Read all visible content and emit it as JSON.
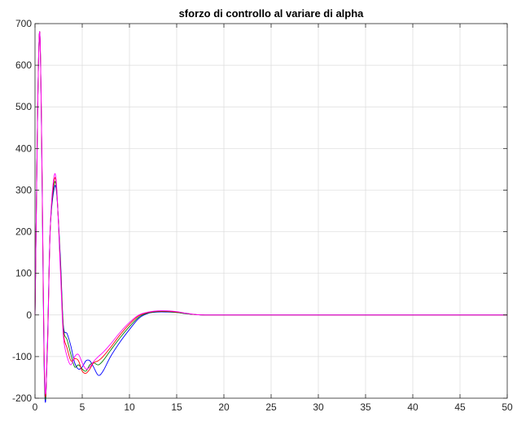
{
  "chart_data": {
    "type": "line",
    "title": "sforzo di controllo al variare di alpha",
    "xlabel": "",
    "ylabel": "",
    "xlim": [
      0,
      50
    ],
    "ylim": [
      -200,
      700
    ],
    "xticks": [
      "0",
      "5",
      "10",
      "15",
      "20",
      "25",
      "30",
      "35",
      "40",
      "45",
      "50"
    ],
    "yticks": [
      "-200",
      "-100",
      "0",
      "100",
      "200",
      "300",
      "400",
      "500",
      "600",
      "700"
    ],
    "grid": true,
    "legend": "none",
    "colors": {
      "axis": "#262626",
      "grid": "#dcdcdc",
      "background": "#ffffff"
    },
    "series": [
      {
        "color": "#0000ff",
        "x": [
          0,
          0.5,
          1.0,
          1.3,
          1.6,
          2.0,
          2.3,
          2.7,
          3.0,
          3.4,
          3.8,
          4.2,
          4.6,
          5.0,
          5.4,
          5.8,
          6.2,
          6.7,
          7.2,
          8.0,
          9.0,
          10.0,
          11.0,
          12.0,
          13.0,
          14.0,
          15.0,
          16.0,
          17.0,
          18.0,
          19.0,
          20.0,
          22.0,
          25.0,
          30.0,
          40.0,
          50.0
        ],
        "y": [
          0,
          680,
          -160,
          -80,
          200,
          300,
          290,
          130,
          -25,
          -45,
          -75,
          -115,
          -130,
          -125,
          -110,
          -110,
          -125,
          -145,
          -135,
          -100,
          -65,
          -35,
          -8,
          4,
          7,
          7,
          6,
          3,
          1,
          0,
          0,
          0,
          0,
          0,
          0,
          0,
          0
        ]
      },
      {
        "color": "#008000",
        "x": [
          0,
          0.5,
          1.0,
          1.3,
          1.6,
          2.0,
          2.3,
          2.7,
          3.0,
          3.4,
          3.8,
          4.2,
          4.6,
          5.0,
          5.4,
          5.8,
          6.2,
          6.7,
          7.2,
          8.0,
          9.0,
          10.0,
          11.0,
          12.0,
          13.0,
          14.0,
          15.0,
          16.0,
          17.0,
          18.0,
          19.0,
          20.0,
          22.0,
          25.0,
          30.0,
          40.0,
          50.0
        ],
        "y": [
          0,
          680,
          -150,
          -85,
          200,
          310,
          295,
          120,
          -30,
          -60,
          -95,
          -125,
          -120,
          -130,
          -135,
          -120,
          -115,
          -120,
          -110,
          -85,
          -55,
          -28,
          -5,
          5,
          8,
          8,
          6,
          3,
          1,
          0,
          0,
          0,
          0,
          0,
          0,
          0,
          0
        ]
      },
      {
        "color": "#ff0000",
        "x": [
          0,
          0.5,
          1.0,
          1.3,
          1.6,
          2.0,
          2.3,
          2.7,
          3.0,
          3.4,
          3.8,
          4.2,
          4.6,
          5.0,
          5.4,
          5.8,
          6.2,
          6.7,
          7.2,
          8.0,
          9.0,
          10.0,
          11.0,
          12.0,
          13.0,
          14.0,
          15.0,
          16.0,
          17.0,
          18.0,
          19.0,
          20.0,
          22.0,
          25.0,
          30.0,
          40.0,
          50.0
        ],
        "y": [
          0,
          680,
          -140,
          -90,
          200,
          320,
          300,
          110,
          -40,
          -80,
          -110,
          -105,
          -110,
          -135,
          -140,
          -130,
          -115,
          -110,
          -100,
          -78,
          -48,
          -22,
          -2,
          6,
          9,
          9,
          7,
          4,
          1,
          0,
          0,
          0,
          0,
          0,
          0,
          0,
          0
        ]
      },
      {
        "color": "#ff00ff",
        "x": [
          0,
          0.5,
          1.0,
          1.3,
          1.6,
          2.0,
          2.3,
          2.7,
          3.0,
          3.4,
          3.8,
          4.2,
          4.6,
          5.0,
          5.4,
          5.8,
          6.2,
          6.7,
          7.2,
          8.0,
          9.0,
          10.0,
          11.0,
          12.0,
          13.0,
          14.0,
          15.0,
          16.0,
          17.0,
          18.0,
          19.0,
          20.0,
          22.0,
          25.0,
          30.0,
          40.0,
          50.0
        ],
        "y": [
          0,
          680,
          -130,
          -95,
          200,
          330,
          305,
          100,
          -50,
          -100,
          -120,
          -100,
          -95,
          -115,
          -130,
          -125,
          -112,
          -100,
          -90,
          -70,
          -42,
          -18,
          0,
          7,
          10,
          10,
          8,
          4,
          1,
          0,
          0,
          0,
          0,
          0,
          0,
          0,
          0
        ]
      }
    ]
  }
}
